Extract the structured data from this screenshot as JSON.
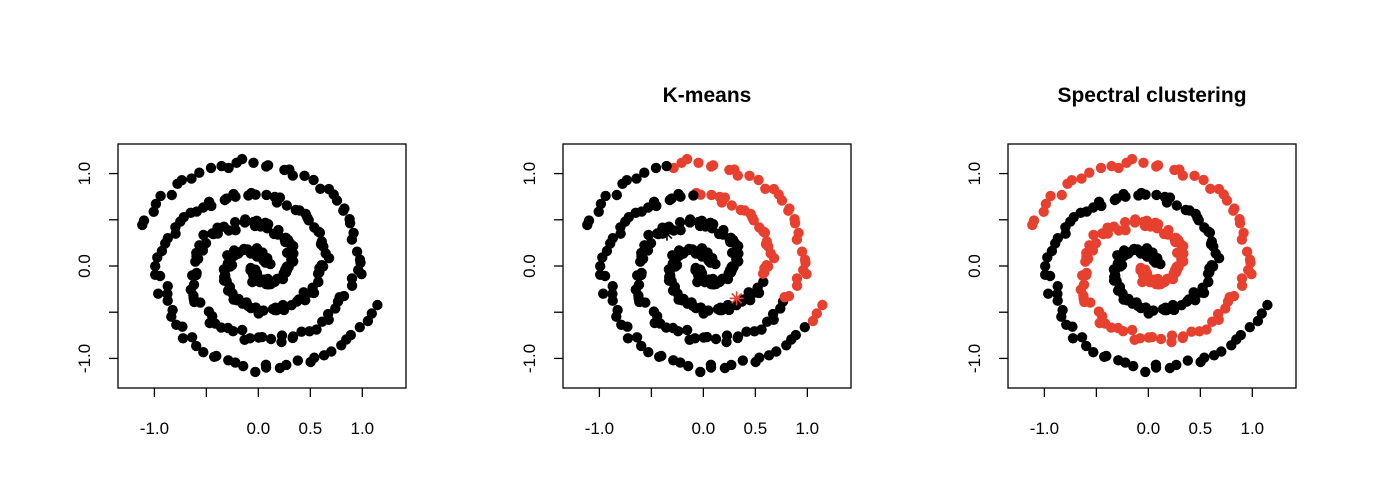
{
  "colors": {
    "cluster_1": "#000000",
    "cluster_2": "#e8402f",
    "background": "#ffffff"
  },
  "chart_data": [
    {
      "type": "scatter",
      "title": "",
      "xlabel": "",
      "ylabel": "",
      "xlim": [
        -1.35,
        1.42
      ],
      "ylim": [
        -1.32,
        1.32
      ],
      "xticks": [
        -1.0,
        -0.5,
        0.0,
        0.5,
        1.0
      ],
      "xtick_labels": [
        "-1.0",
        "",
        "0.0",
        "0.5",
        "1.0"
      ],
      "yticks": [
        -1.0,
        -0.5,
        0.0,
        0.5,
        1.0
      ],
      "ytick_labels": [
        "-1.0",
        "",
        "0.0",
        "",
        "1.0"
      ],
      "grid": false,
      "description": "two interleaved spirals, all points shown in a single color (unclustered)",
      "coloring": "none",
      "series": [
        {
          "color": "#000000",
          "points": "two-spiral dataset (all points)"
        }
      ]
    },
    {
      "type": "scatter",
      "title": "K-means",
      "xlabel": "",
      "ylabel": "",
      "xlim": [
        -1.35,
        1.42
      ],
      "ylim": [
        -1.32,
        1.32
      ],
      "xticks": [
        -1.0,
        -0.5,
        0.0,
        0.5,
        1.0
      ],
      "xtick_labels": [
        "-1.0",
        "",
        "0.0",
        "0.5",
        "1.0"
      ],
      "yticks": [
        -1.0,
        -0.5,
        0.0,
        0.5,
        1.0
      ],
      "ytick_labels": [
        "-1.0",
        "",
        "0.0",
        "",
        "1.0"
      ],
      "grid": false,
      "coloring": "kmeans",
      "split_line": {
        "point": [
          0.35,
          0.2
        ],
        "direction": [
          0.7,
          -0.9
        ]
      },
      "centers": [
        {
          "x": -0.35,
          "y": 0.35,
          "color": "#000000"
        },
        {
          "x": 0.32,
          "y": -0.35,
          "color": "#e8402f"
        }
      ],
      "series": [
        {
          "color": "#000000",
          "points": "spiral points on upper-left side of split"
        },
        {
          "color": "#e8402f",
          "points": "spiral points on lower-right side of split"
        }
      ]
    },
    {
      "type": "scatter",
      "title": "Spectral clustering",
      "xlabel": "",
      "ylabel": "",
      "xlim": [
        -1.35,
        1.42
      ],
      "ylim": [
        -1.32,
        1.32
      ],
      "xticks": [
        -1.0,
        -0.5,
        0.0,
        0.5,
        1.0
      ],
      "xtick_labels": [
        "-1.0",
        "",
        "0.0",
        "0.5",
        "1.0"
      ],
      "yticks": [
        -1.0,
        -0.5,
        0.0,
        0.5,
        1.0
      ],
      "ytick_labels": [
        "-1.0",
        "",
        "0.0",
        "",
        "1.0"
      ],
      "grid": false,
      "coloring": "spectral",
      "series": [
        {
          "color": "#000000",
          "points": "spiral arm A"
        },
        {
          "color": "#e8402f",
          "points": "spiral arm B"
        }
      ]
    }
  ],
  "spiral_model": {
    "arms": [
      {
        "id": "A",
        "theta_start": 0.6,
        "theta_end": 12.2,
        "radius_start": 0.05,
        "radius_end": 1.22,
        "phase": 0.0
      },
      {
        "id": "B",
        "theta_start": 0.6,
        "theta_end": 12.2,
        "radius_start": 0.05,
        "radius_end": 1.22,
        "phase": 3.14159
      }
    ],
    "points_per_arm": 150,
    "noise": 0.025
  }
}
